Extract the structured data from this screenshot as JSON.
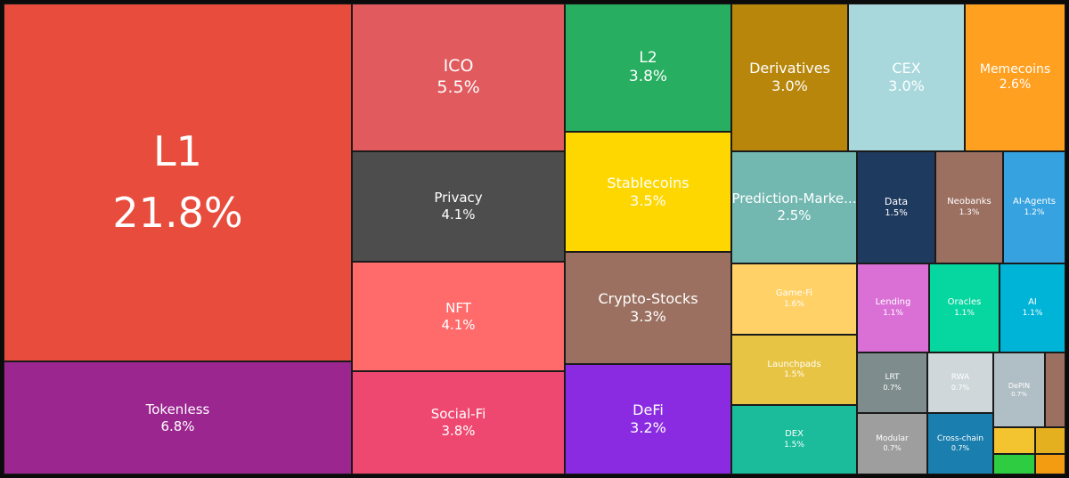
{
  "chart_data": {
    "type": "treemap",
    "title": "",
    "items": [
      {
        "name": "L1",
        "label": "21.8%",
        "value": 21.8,
        "color": "#e74c3c"
      },
      {
        "name": "Tokenless",
        "label": "6.8%",
        "value": 6.8,
        "color": "#9b2690"
      },
      {
        "name": "ICO",
        "label": "5.5%",
        "value": 5.5,
        "color": "#e05a5e"
      },
      {
        "name": "Privacy",
        "label": "4.1%",
        "value": 4.1,
        "color": "#4d4d4d"
      },
      {
        "name": "NFT",
        "label": "4.1%",
        "value": 4.1,
        "color": "#ff6b6b"
      },
      {
        "name": "Social-Fi",
        "label": "3.8%",
        "value": 3.8,
        "color": "#ee4870"
      },
      {
        "name": "L2",
        "label": "3.8%",
        "value": 3.8,
        "color": "#27ae60"
      },
      {
        "name": "Stablecoins",
        "label": "3.5%",
        "value": 3.5,
        "color": "#ffd700"
      },
      {
        "name": "Crypto-Stocks",
        "label": "3.3%",
        "value": 3.3,
        "color": "#9b7060"
      },
      {
        "name": "DeFi",
        "label": "3.2%",
        "value": 3.2,
        "color": "#8a2be2"
      },
      {
        "name": "Derivatives",
        "label": "3.0%",
        "value": 3.0,
        "color": "#b8860b"
      },
      {
        "name": "CEX",
        "label": "3.0%",
        "value": 3.0,
        "color": "#a8d8dc"
      },
      {
        "name": "Memecoins",
        "label": "2.6%",
        "value": 2.6,
        "color": "#ffa020"
      },
      {
        "name": "Prediction-Marke...",
        "label": "2.5%",
        "value": 2.5,
        "color": "#72b8b0"
      },
      {
        "name": "Data",
        "label": "1.5%",
        "value": 1.5,
        "color": "#1f3a5f"
      },
      {
        "name": "Neobanks",
        "label": "1.3%",
        "value": 1.3,
        "color": "#9b7060"
      },
      {
        "name": "AI-Agents",
        "label": "1.2%",
        "value": 1.2,
        "color": "#36a2e0"
      },
      {
        "name": "Game-Fi",
        "label": "1.6%",
        "value": 1.6,
        "color": "#ffd166"
      },
      {
        "name": "Launchpads",
        "label": "1.5%",
        "value": 1.5,
        "color": "#e8c444"
      },
      {
        "name": "DEX",
        "label": "1.5%",
        "value": 1.5,
        "color": "#1abc9c"
      },
      {
        "name": "Lending",
        "label": "1.1%",
        "value": 1.1,
        "color": "#da70d6"
      },
      {
        "name": "Oracles",
        "label": "1.1%",
        "value": 1.1,
        "color": "#06d6a0"
      },
      {
        "name": "AI",
        "label": "1.1%",
        "value": 1.1,
        "color": "#00b4d8"
      },
      {
        "name": "LRT",
        "label": "0.7%",
        "value": 0.7,
        "color": "#7f8c8d"
      },
      {
        "name": "RWA",
        "label": "0.7%",
        "value": 0.7,
        "color": "#d0d7da"
      },
      {
        "name": "DePIN",
        "label": "0.7%",
        "value": 0.7,
        "color": "#b0bec5"
      },
      {
        "name": "Modular",
        "label": "0.7%",
        "value": 0.7,
        "color": "#9e9e9e"
      },
      {
        "name": "Cross-chain",
        "label": "0.7%",
        "value": 0.7,
        "color": "#1a7fae"
      },
      {
        "name": "",
        "label": "",
        "value": 0.3,
        "color": "#9b7060"
      },
      {
        "name": "",
        "label": "",
        "value": 0.2,
        "color": "#f4c430"
      },
      {
        "name": "",
        "label": "",
        "value": 0.2,
        "color": "#e5b020"
      },
      {
        "name": "",
        "label": "",
        "value": 0.1,
        "color": "#2ecc40"
      },
      {
        "name": "",
        "label": "",
        "value": 0.1,
        "color": "#f39c12"
      }
    ]
  }
}
